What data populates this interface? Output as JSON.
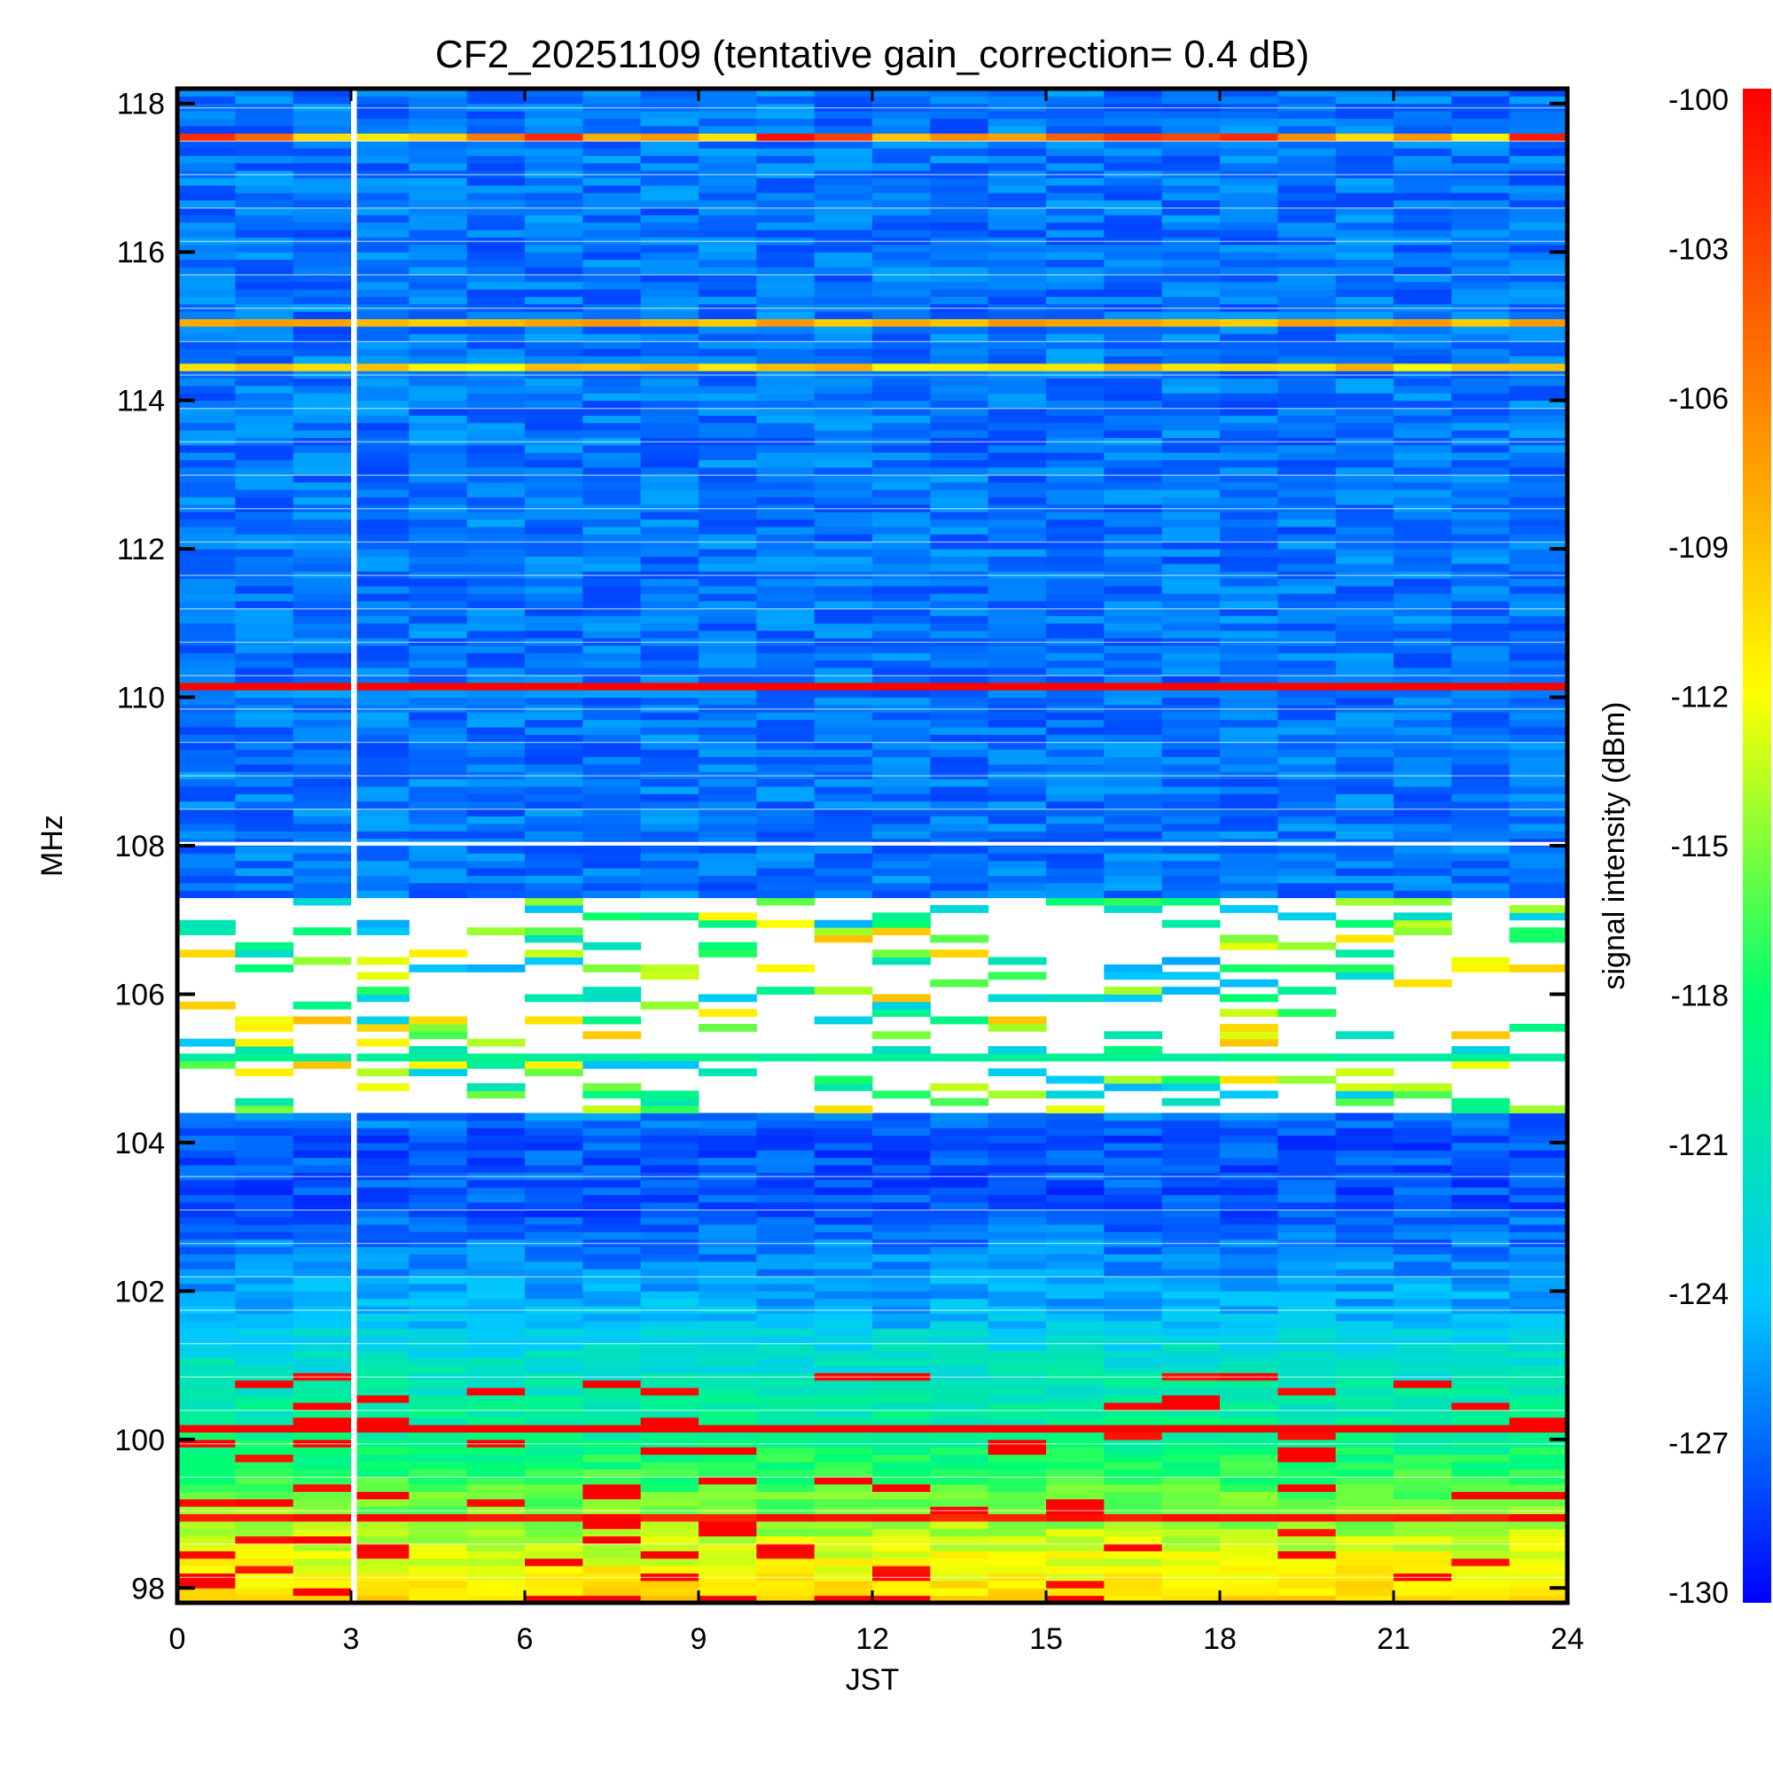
{
  "chart_data": {
    "type": "heatmap",
    "title": "CF2_20251109 (tentative gain_correction=  0.4 dB)",
    "xlabel": "JST",
    "ylabel": "MHz",
    "colorbar_label": "signal intensity (dBm)",
    "xlim": [
      0,
      24
    ],
    "ylim": [
      97.8,
      118.2
    ],
    "x_ticks": [
      "0",
      "3",
      "6",
      "9",
      "12",
      "15",
      "18",
      "21",
      "24"
    ],
    "y_ticks": [
      "98",
      "100",
      "102",
      "104",
      "106",
      "108",
      "110",
      "112",
      "114",
      "116",
      "118"
    ],
    "color_range": [
      -130,
      -100
    ],
    "colorbar_ticks": [
      "-100",
      "-103",
      "-106",
      "-109",
      "-112",
      "-115",
      "-118",
      "-121",
      "-124",
      "-127",
      "-130"
    ],
    "colormap": [
      "#0000ff",
      "#00c8ff",
      "#00ff70",
      "#ffff00",
      "#ff8000",
      "#ff0000"
    ],
    "data_gap": {
      "jst_start": 3.0,
      "jst_end": 3.1
    },
    "notable_signals": [
      {
        "freq_mhz": 117.5,
        "dbm_min": -112,
        "dbm_max": -100
      },
      {
        "freq_mhz": 115.0,
        "dbm_min": -110,
        "dbm_max": -107
      },
      {
        "freq_mhz": 114.4,
        "dbm_min": -112,
        "dbm_max": -108
      },
      {
        "freq_mhz": 110.05,
        "dbm_min": -100,
        "dbm_max": -100
      },
      {
        "freq_mhz": 105.05,
        "dbm_min": -120,
        "dbm_max": -119
      },
      {
        "freq_mhz": 100.05,
        "dbm_min": -100,
        "dbm_max": -100
      },
      {
        "freq_mhz": 98.85,
        "dbm_min": -102,
        "dbm_max": -100
      }
    ],
    "saturated_regions": [
      {
        "freq_range_mhz": [
          104.4,
          107.3
        ],
        "color": "white"
      }
    ]
  }
}
